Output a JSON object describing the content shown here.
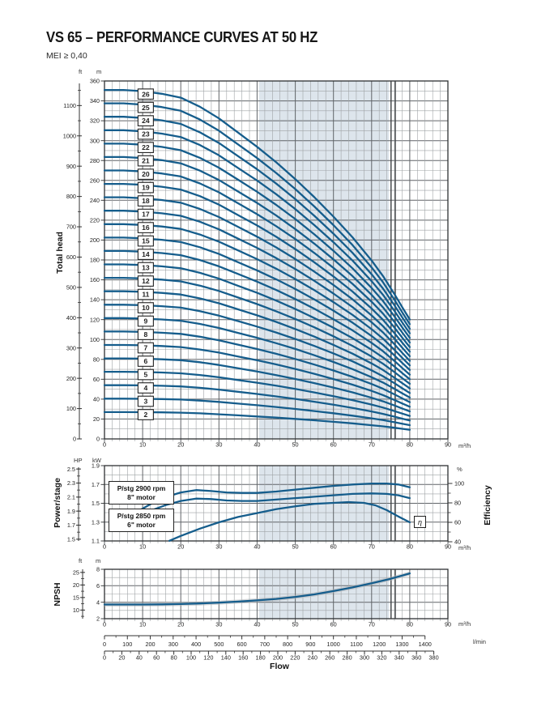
{
  "header": {
    "title": "VS 65 – PERFORMANCE CURVES AT 50 HZ",
    "mei": "MEI ≥ 0,40"
  },
  "labels": {
    "total_head": "Total head",
    "power_stage": "Power/stage",
    "npsh": "NPSH",
    "efficiency": "Efficiency",
    "flow": "Flow",
    "eta": "η"
  },
  "units": {
    "ft": "ft",
    "m": "m",
    "hp": "HP",
    "kw": "kW",
    "pct": "%",
    "m3h": "m³/h",
    "lmin": "l/min"
  },
  "annotations": {
    "motor1_line1": "P/stg 2900 rpm",
    "motor1_line2": "8\" motor",
    "motor2_line1": "P/stg 2850 rpm",
    "motor2_line2": "6\" motor"
  },
  "colors": {
    "curve": "#155d8c",
    "band": "#dde5ec",
    "grid_minor": "#9fa3a6",
    "grid_major": "#606468",
    "frame": "#2e3133",
    "limit": "#3c4043",
    "halo": "#b2b6b9",
    "text": "#222222"
  },
  "chart_data": [
    {
      "id": "head",
      "type": "line",
      "ylabel": "Total head",
      "x_unit": "m³/h",
      "y_unit": "m",
      "y2_unit": "ft",
      "x_ticks": [
        0,
        10,
        20,
        30,
        40,
        50,
        60,
        70,
        80,
        90
      ],
      "y_ticks_m": [
        0,
        20,
        40,
        60,
        80,
        100,
        120,
        140,
        160,
        180,
        200,
        220,
        240,
        260,
        280,
        300,
        320,
        340,
        360
      ],
      "y2_ticks_ft": [
        0,
        100,
        200,
        300,
        400,
        500,
        600,
        700,
        800,
        900,
        1000,
        1100
      ],
      "operating_range_m3h": [
        40.5,
        74.6
      ],
      "limit_lines_m3h": [
        75.1,
        76.2
      ],
      "stages": [
        2,
        3,
        4,
        5,
        6,
        7,
        8,
        9,
        10,
        11,
        12,
        13,
        14,
        15,
        16,
        17,
        18,
        19,
        20,
        21,
        22,
        23,
        24,
        25,
        26
      ],
      "stage_label_flow": 10.8,
      "head_per_stage_m_vs_flow": [
        [
          0,
          13.5
        ],
        [
          5,
          13.5
        ],
        [
          10,
          13.45
        ],
        [
          15,
          13.35
        ],
        [
          20,
          13.2
        ],
        [
          25,
          12.85
        ],
        [
          30,
          12.4
        ],
        [
          35,
          11.85
        ],
        [
          40,
          11.3
        ],
        [
          45,
          10.7
        ],
        [
          50,
          10.05
        ],
        [
          55,
          9.35
        ],
        [
          60,
          8.6
        ],
        [
          65,
          7.8
        ],
        [
          70,
          6.9
        ],
        [
          73,
          6.3
        ],
        [
          76,
          5.6
        ],
        [
          78,
          5.1
        ],
        [
          80,
          4.62
        ]
      ]
    },
    {
      "id": "power",
      "type": "line",
      "ylabel": "Power/stage",
      "y2label": "Efficiency",
      "x_unit": "m³/h",
      "y_unit": "kW",
      "y2_unit": "HP",
      "pct_unit": "%",
      "x_ticks": [
        0,
        10,
        20,
        30,
        40,
        50,
        60,
        70,
        80,
        90
      ],
      "y_ticks_kw": [
        1.1,
        1.3,
        1.5,
        1.7,
        1.9
      ],
      "y2_ticks_hp": [
        1.5,
        1.7,
        1.9,
        2.1,
        2.3,
        2.5
      ],
      "efficiency_ticks_pct": [
        40,
        60,
        80,
        100
      ],
      "operating_range_m3h": [
        40.5,
        74.6
      ],
      "limit_lines_m3h": [
        75.1,
        76.2
      ],
      "series": [
        {
          "name": "P/stg 2900 rpm 8\" motor",
          "axis": "kw",
          "points": [
            [
              9,
              1.42
            ],
            [
              12,
              1.49
            ],
            [
              16,
              1.565
            ],
            [
              20,
              1.615
            ],
            [
              24,
              1.64
            ],
            [
              28,
              1.63
            ],
            [
              32,
              1.615
            ],
            [
              36,
              1.61
            ],
            [
              40,
              1.61
            ],
            [
              45,
              1.625
            ],
            [
              50,
              1.645
            ],
            [
              55,
              1.665
            ],
            [
              60,
              1.685
            ],
            [
              65,
              1.7
            ],
            [
              70,
              1.71
            ],
            [
              74,
              1.71
            ],
            [
              77,
              1.7
            ],
            [
              80,
              1.67
            ]
          ]
        },
        {
          "name": "P/stg 2850 rpm 6\" motor",
          "axis": "kw",
          "points": [
            [
              9,
              1.355
            ],
            [
              12,
              1.42
            ],
            [
              16,
              1.48
            ],
            [
              20,
              1.525
            ],
            [
              24,
              1.55
            ],
            [
              28,
              1.545
            ],
            [
              32,
              1.53
            ],
            [
              36,
              1.525
            ],
            [
              40,
              1.525
            ],
            [
              45,
              1.54
            ],
            [
              50,
              1.555
            ],
            [
              55,
              1.57
            ],
            [
              60,
              1.585
            ],
            [
              65,
              1.6
            ],
            [
              70,
              1.605
            ],
            [
              74,
              1.6
            ],
            [
              77,
              1.585
            ],
            [
              80,
              1.555
            ]
          ]
        },
        {
          "name": "Efficiency η",
          "axis": "pct",
          "points": [
            [
              17,
              41
            ],
            [
              20,
              46
            ],
            [
              25,
              53.5
            ],
            [
              30,
              60
            ],
            [
              35,
              65.5
            ],
            [
              40,
              69.5
            ],
            [
              45,
              73.5
            ],
            [
              50,
              76.5
            ],
            [
              55,
              79
            ],
            [
              60,
              80
            ],
            [
              64,
              80.8
            ],
            [
              68,
              80
            ],
            [
              71,
              77.5
            ],
            [
              74,
              72.5
            ],
            [
              77,
              66
            ],
            [
              80,
              60
            ]
          ]
        }
      ]
    },
    {
      "id": "npsh",
      "type": "line",
      "ylabel": "NPSH",
      "xlabel": "Flow",
      "x_unit": "m³/h",
      "y_unit": "m",
      "y2_unit": "ft",
      "x_ticks": [
        0,
        10,
        20,
        30,
        40,
        50,
        60,
        70,
        80,
        90
      ],
      "y_ticks_m": [
        2,
        4,
        6,
        8
      ],
      "y2_ticks_ft": [
        10,
        15,
        20,
        25
      ],
      "operating_range_m3h": [
        40.5,
        74.6
      ],
      "limit_lines_m3h": [
        75.1,
        76.2
      ],
      "series": [
        {
          "name": "NPSH",
          "axis": "m",
          "points": [
            [
              0,
              3.72
            ],
            [
              10,
              3.72
            ],
            [
              15,
              3.74
            ],
            [
              20,
              3.78
            ],
            [
              25,
              3.85
            ],
            [
              30,
              3.95
            ],
            [
              35,
              4.08
            ],
            [
              40,
              4.22
            ],
            [
              45,
              4.4
            ],
            [
              50,
              4.65
            ],
            [
              55,
              4.95
            ],
            [
              60,
              5.35
            ],
            [
              65,
              5.8
            ],
            [
              70,
              6.3
            ],
            [
              75,
              6.85
            ],
            [
              80,
              7.5
            ]
          ]
        }
      ],
      "lmin_ticks": [
        0,
        100,
        200,
        300,
        400,
        500,
        600,
        700,
        800,
        900,
        1000,
        1100,
        1200,
        1300,
        1400
      ],
      "gpm_ticks": [
        0,
        20,
        40,
        60,
        80,
        100,
        120,
        140,
        160,
        180,
        200,
        220,
        240,
        260,
        280,
        300,
        320,
        340,
        360,
        380
      ]
    }
  ]
}
